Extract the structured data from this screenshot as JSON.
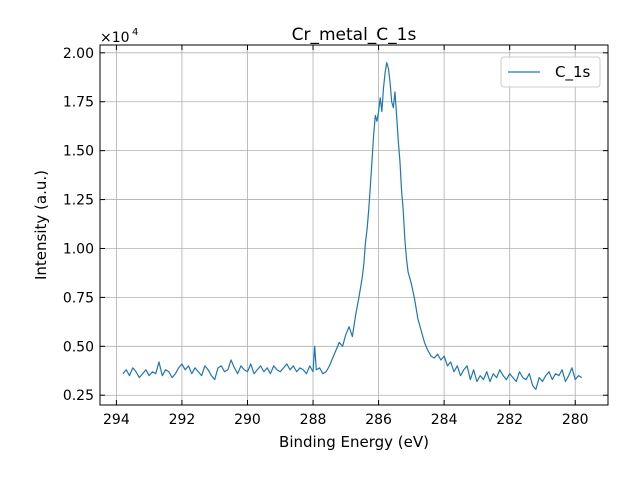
{
  "chart_data": {
    "type": "line",
    "title": "Cr_metal_C_1s",
    "xlabel": "Binding Energy (eV)",
    "ylabel": "Intensity (a.u.)",
    "x_reversed": true,
    "xlim": [
      294.5,
      279.0
    ],
    "ylim": [
      0.2,
      2.04
    ],
    "y_scale_note": {
      "base": "×10",
      "exp": "4"
    },
    "x_ticks": [
      294,
      292,
      290,
      288,
      286,
      284,
      282,
      280
    ],
    "x_tick_labels": [
      "294",
      "292",
      "290",
      "288",
      "286",
      "284",
      "282",
      "280"
    ],
    "y_ticks": [
      0.25,
      0.5,
      0.75,
      1.0,
      1.25,
      1.5,
      1.75,
      2.0
    ],
    "y_tick_labels": [
      "0.25",
      "0.50",
      "0.75",
      "1.00",
      "1.25",
      "1.50",
      "1.75",
      "2.00"
    ],
    "grid": true,
    "legend_position": "top-right",
    "series": [
      {
        "name": "C_1s",
        "color": "#1f77b4",
        "points": [
          [
            293.8,
            0.36
          ],
          [
            293.7,
            0.38
          ],
          [
            293.6,
            0.35
          ],
          [
            293.5,
            0.39
          ],
          [
            293.4,
            0.37
          ],
          [
            293.3,
            0.34
          ],
          [
            293.2,
            0.36
          ],
          [
            293.1,
            0.38
          ],
          [
            293.0,
            0.35
          ],
          [
            292.9,
            0.37
          ],
          [
            292.8,
            0.36
          ],
          [
            292.7,
            0.42
          ],
          [
            292.6,
            0.35
          ],
          [
            292.5,
            0.38
          ],
          [
            292.4,
            0.37
          ],
          [
            292.3,
            0.34
          ],
          [
            292.2,
            0.36
          ],
          [
            292.1,
            0.39
          ],
          [
            292.0,
            0.41
          ],
          [
            291.9,
            0.38
          ],
          [
            291.8,
            0.4
          ],
          [
            291.7,
            0.36
          ],
          [
            291.6,
            0.39
          ],
          [
            291.5,
            0.37
          ],
          [
            291.4,
            0.35
          ],
          [
            291.3,
            0.4
          ],
          [
            291.2,
            0.38
          ],
          [
            291.1,
            0.35
          ],
          [
            291.0,
            0.33
          ],
          [
            290.9,
            0.39
          ],
          [
            290.8,
            0.4
          ],
          [
            290.7,
            0.37
          ],
          [
            290.6,
            0.38
          ],
          [
            290.5,
            0.43
          ],
          [
            290.4,
            0.39
          ],
          [
            290.3,
            0.36
          ],
          [
            290.2,
            0.4
          ],
          [
            290.1,
            0.38
          ],
          [
            290.0,
            0.37
          ],
          [
            289.9,
            0.41
          ],
          [
            289.8,
            0.36
          ],
          [
            289.7,
            0.38
          ],
          [
            289.6,
            0.4
          ],
          [
            289.5,
            0.37
          ],
          [
            289.4,
            0.39
          ],
          [
            289.3,
            0.36
          ],
          [
            289.2,
            0.4
          ],
          [
            289.1,
            0.38
          ],
          [
            289.0,
            0.37
          ],
          [
            288.9,
            0.39
          ],
          [
            288.8,
            0.41
          ],
          [
            288.7,
            0.38
          ],
          [
            288.6,
            0.4
          ],
          [
            288.5,
            0.37
          ],
          [
            288.4,
            0.39
          ],
          [
            288.3,
            0.38
          ],
          [
            288.2,
            0.36
          ],
          [
            288.1,
            0.4
          ],
          [
            288.0,
            0.37
          ],
          [
            287.95,
            0.5
          ],
          [
            287.9,
            0.38
          ],
          [
            287.8,
            0.39
          ],
          [
            287.7,
            0.36
          ],
          [
            287.6,
            0.37
          ],
          [
            287.5,
            0.4
          ],
          [
            287.4,
            0.44
          ],
          [
            287.3,
            0.48
          ],
          [
            287.2,
            0.52
          ],
          [
            287.1,
            0.5
          ],
          [
            287.0,
            0.56
          ],
          [
            286.9,
            0.6
          ],
          [
            286.8,
            0.55
          ],
          [
            286.7,
            0.66
          ],
          [
            286.6,
            0.75
          ],
          [
            286.5,
            0.85
          ],
          [
            286.45,
            0.92
          ],
          [
            286.4,
            1.03
          ],
          [
            286.35,
            1.1
          ],
          [
            286.3,
            1.2
          ],
          [
            286.25,
            1.32
          ],
          [
            286.2,
            1.45
          ],
          [
            286.15,
            1.58
          ],
          [
            286.1,
            1.68
          ],
          [
            286.05,
            1.65
          ],
          [
            286.0,
            1.7
          ],
          [
            285.95,
            1.77
          ],
          [
            285.9,
            1.7
          ],
          [
            285.85,
            1.82
          ],
          [
            285.8,
            1.9
          ],
          [
            285.75,
            1.95
          ],
          [
            285.7,
            1.92
          ],
          [
            285.65,
            1.85
          ],
          [
            285.6,
            1.75
          ],
          [
            285.55,
            1.72
          ],
          [
            285.5,
            1.8
          ],
          [
            285.45,
            1.68
          ],
          [
            285.4,
            1.55
          ],
          [
            285.35,
            1.45
          ],
          [
            285.3,
            1.3
          ],
          [
            285.25,
            1.2
          ],
          [
            285.2,
            1.05
          ],
          [
            285.15,
            0.95
          ],
          [
            285.1,
            0.88
          ],
          [
            285.0,
            0.82
          ],
          [
            284.9,
            0.74
          ],
          [
            284.8,
            0.64
          ],
          [
            284.7,
            0.58
          ],
          [
            284.6,
            0.52
          ],
          [
            284.5,
            0.48
          ],
          [
            284.4,
            0.45
          ],
          [
            284.3,
            0.44
          ],
          [
            284.2,
            0.46
          ],
          [
            284.1,
            0.43
          ],
          [
            284.0,
            0.45
          ],
          [
            283.9,
            0.4
          ],
          [
            283.8,
            0.42
          ],
          [
            283.7,
            0.37
          ],
          [
            283.6,
            0.4
          ],
          [
            283.5,
            0.35
          ],
          [
            283.4,
            0.38
          ],
          [
            283.3,
            0.4
          ],
          [
            283.2,
            0.33
          ],
          [
            283.1,
            0.38
          ],
          [
            283.0,
            0.32
          ],
          [
            282.9,
            0.35
          ],
          [
            282.8,
            0.33
          ],
          [
            282.7,
            0.37
          ],
          [
            282.6,
            0.32
          ],
          [
            282.5,
            0.36
          ],
          [
            282.4,
            0.34
          ],
          [
            282.3,
            0.38
          ],
          [
            282.2,
            0.35
          ],
          [
            282.1,
            0.33
          ],
          [
            282.0,
            0.36
          ],
          [
            281.9,
            0.34
          ],
          [
            281.8,
            0.32
          ],
          [
            281.7,
            0.37
          ],
          [
            281.6,
            0.34
          ],
          [
            281.5,
            0.33
          ],
          [
            281.4,
            0.36
          ],
          [
            281.3,
            0.3
          ],
          [
            281.2,
            0.28
          ],
          [
            281.1,
            0.34
          ],
          [
            281.0,
            0.32
          ],
          [
            280.9,
            0.35
          ],
          [
            280.8,
            0.37
          ],
          [
            280.7,
            0.33
          ],
          [
            280.6,
            0.36
          ],
          [
            280.5,
            0.35
          ],
          [
            280.4,
            0.38
          ],
          [
            280.3,
            0.32
          ],
          [
            280.2,
            0.35
          ],
          [
            280.1,
            0.39
          ],
          [
            280.0,
            0.33
          ],
          [
            279.9,
            0.35
          ],
          [
            279.8,
            0.34
          ]
        ]
      }
    ]
  }
}
